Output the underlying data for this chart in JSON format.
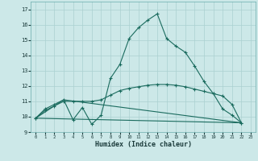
{
  "xlabel": "Humidex (Indice chaleur)",
  "bg_color": "#cce8e8",
  "grid_color": "#aad0d0",
  "line_color": "#1a6b5e",
  "xlim": [
    -0.5,
    23.5
  ],
  "ylim": [
    9,
    17.5
  ],
  "xticks": [
    0,
    1,
    2,
    3,
    4,
    5,
    6,
    7,
    8,
    9,
    10,
    11,
    12,
    13,
    14,
    15,
    16,
    17,
    18,
    19,
    20,
    21,
    22,
    23
  ],
  "yticks": [
    9,
    10,
    11,
    12,
    13,
    14,
    15,
    16,
    17
  ],
  "series": [
    {
      "x": [
        0,
        1,
        2,
        3,
        4,
        5,
        6,
        7,
        8,
        9,
        10,
        11,
        12,
        13,
        14,
        15,
        16,
        17,
        18,
        19,
        20,
        21,
        22
      ],
      "y": [
        9.9,
        10.5,
        10.8,
        11.1,
        9.8,
        10.6,
        9.5,
        10.1,
        12.5,
        13.4,
        15.1,
        15.8,
        16.3,
        16.7,
        15.1,
        14.6,
        14.2,
        13.3,
        12.3,
        11.5,
        10.5,
        10.1,
        9.6
      ]
    },
    {
      "x": [
        0,
        3,
        22
      ],
      "y": [
        9.9,
        11.1,
        9.6
      ]
    },
    {
      "x": [
        0,
        22
      ],
      "y": [
        9.9,
        9.6
      ]
    },
    {
      "x": [
        0,
        1,
        2,
        3,
        4,
        5,
        6,
        7,
        8,
        9,
        10,
        11,
        12,
        13,
        14,
        15,
        16,
        17,
        18,
        19,
        20,
        21,
        22
      ],
      "y": [
        9.9,
        10.4,
        10.7,
        11.0,
        11.0,
        11.0,
        11.0,
        11.1,
        11.4,
        11.7,
        11.85,
        11.95,
        12.05,
        12.1,
        12.1,
        12.05,
        11.95,
        11.8,
        11.65,
        11.5,
        11.35,
        10.8,
        9.6
      ]
    }
  ]
}
